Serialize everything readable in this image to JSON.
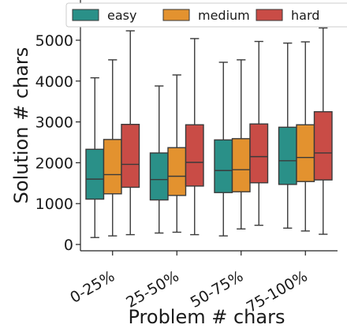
{
  "chart_data": {
    "type": "boxplot",
    "xlabel": "Problem # chars",
    "ylabel": "Solution # chars",
    "categories": [
      "0-25%",
      "25-50%",
      "50-75%",
      "75-100%"
    ],
    "ylim": [
      -100,
      5300
    ],
    "yticks": [
      0,
      1000,
      2000,
      3000,
      4000,
      5000
    ],
    "legend": {
      "position": "top",
      "columns": 3
    },
    "grid": false,
    "series": [
      {
        "name": "easy",
        "color": "#2a9088",
        "boxes": [
          {
            "whislo": 170,
            "q1": 1110,
            "med": 1600,
            "q3": 2330,
            "whishi": 4080
          },
          {
            "whislo": 280,
            "q1": 1090,
            "med": 1590,
            "q3": 2240,
            "whishi": 3880
          },
          {
            "whislo": 210,
            "q1": 1270,
            "med": 1810,
            "q3": 2560,
            "whishi": 4460
          },
          {
            "whislo": 400,
            "q1": 1470,
            "med": 2050,
            "q3": 2870,
            "whishi": 4930
          }
        ]
      },
      {
        "name": "medium",
        "color": "#e3922f",
        "boxes": [
          {
            "whislo": 210,
            "q1": 1240,
            "med": 1710,
            "q3": 2570,
            "whishi": 4520
          },
          {
            "whislo": 300,
            "q1": 1200,
            "med": 1670,
            "q3": 2370,
            "whishi": 4150
          },
          {
            "whislo": 380,
            "q1": 1290,
            "med": 1830,
            "q3": 2590,
            "whishi": 4520
          },
          {
            "whislo": 330,
            "q1": 1540,
            "med": 2130,
            "q3": 2930,
            "whishi": 4960
          }
        ]
      },
      {
        "name": "hard",
        "color": "#c94c46",
        "boxes": [
          {
            "whislo": 240,
            "q1": 1400,
            "med": 1960,
            "q3": 2940,
            "whishi": 5230
          },
          {
            "whislo": 240,
            "q1": 1430,
            "med": 2010,
            "q3": 2930,
            "whishi": 5040
          },
          {
            "whislo": 470,
            "q1": 1510,
            "med": 2150,
            "q3": 2950,
            "whishi": 4970
          },
          {
            "whislo": 250,
            "q1": 1580,
            "med": 2240,
            "q3": 3250,
            "whishi": 5300
          }
        ]
      }
    ]
  }
}
